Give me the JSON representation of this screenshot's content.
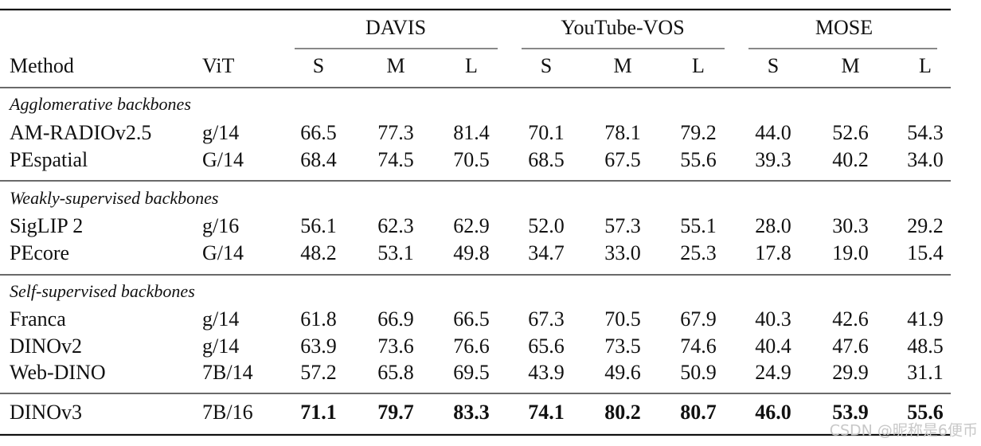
{
  "header": {
    "groups": [
      "DAVIS",
      "YouTube-VOS",
      "MOSE"
    ],
    "columns": [
      "Method",
      "ViT",
      "S",
      "M",
      "L",
      "S",
      "M",
      "L",
      "S",
      "M",
      "L"
    ]
  },
  "sections": [
    {
      "label": "Agglomerative backbones",
      "rows": [
        {
          "method": "AM-RADIOv2.5",
          "vit": "g/14",
          "values": [
            "66.5",
            "77.3",
            "81.4",
            "70.1",
            "78.1",
            "79.2",
            "44.0",
            "52.6",
            "54.3"
          ]
        },
        {
          "method": "PEspatial",
          "vit": "G/14",
          "values": [
            "68.4",
            "74.5",
            "70.5",
            "68.5",
            "67.5",
            "55.6",
            "39.3",
            "40.2",
            "34.0"
          ]
        }
      ]
    },
    {
      "label": "Weakly-supervised backbones",
      "rows": [
        {
          "method": "SigLIP 2",
          "vit": "g/16",
          "values": [
            "56.1",
            "62.3",
            "62.9",
            "52.0",
            "57.3",
            "55.1",
            "28.0",
            "30.3",
            "29.2"
          ]
        },
        {
          "method": "PEcore",
          "vit": "G/14",
          "values": [
            "48.2",
            "53.1",
            "49.8",
            "34.7",
            "33.0",
            "25.3",
            "17.8",
            "19.0",
            "15.4"
          ]
        }
      ]
    },
    {
      "label": "Self-supervised backbones",
      "rows": [
        {
          "method": "Franca",
          "vit": "g/14",
          "values": [
            "61.8",
            "66.9",
            "66.5",
            "67.3",
            "70.5",
            "67.9",
            "40.3",
            "42.6",
            "41.9"
          ]
        },
        {
          "method": "DINOv2",
          "vit": "g/14",
          "values": [
            "63.9",
            "73.6",
            "76.6",
            "65.6",
            "73.5",
            "74.6",
            "40.4",
            "47.6",
            "48.5"
          ]
        },
        {
          "method": "Web-DINO",
          "vit": "7B/14",
          "values": [
            "57.2",
            "65.8",
            "69.5",
            "43.9",
            "49.6",
            "50.9",
            "24.9",
            "29.9",
            "31.1"
          ]
        }
      ]
    }
  ],
  "final_row": {
    "method": "DINOv3",
    "vit": "7B/16",
    "values": [
      "71.1",
      "79.7",
      "83.3",
      "74.1",
      "80.2",
      "80.7",
      "46.0",
      "53.9",
      "55.6"
    ]
  },
  "watermark": "CSDN @昵称是6便币"
}
